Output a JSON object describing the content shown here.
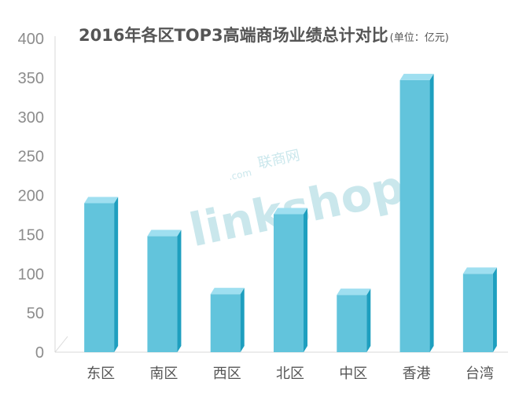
{
  "chart_data": {
    "type": "bar",
    "title": "2016年各区TOP3高端商场业绩总计对比",
    "unit": "(单位：亿元)",
    "categories": [
      "东区",
      "南区",
      "西区",
      "北区",
      "中区",
      "香港",
      "台湾"
    ],
    "values": [
      190,
      148,
      74,
      176,
      73,
      347,
      100
    ],
    "yticks": [
      0,
      50,
      100,
      150,
      200,
      250,
      300,
      350,
      400
    ],
    "ylim": [
      0,
      400
    ],
    "grid": false,
    "bar_color": "#62c4dc",
    "bar_top_color": "#9fdff0",
    "bar_side_color": "#1e9fbf",
    "watermark": {
      "brand": "linkshop",
      "sub": "联商网",
      "com": ".com"
    }
  }
}
